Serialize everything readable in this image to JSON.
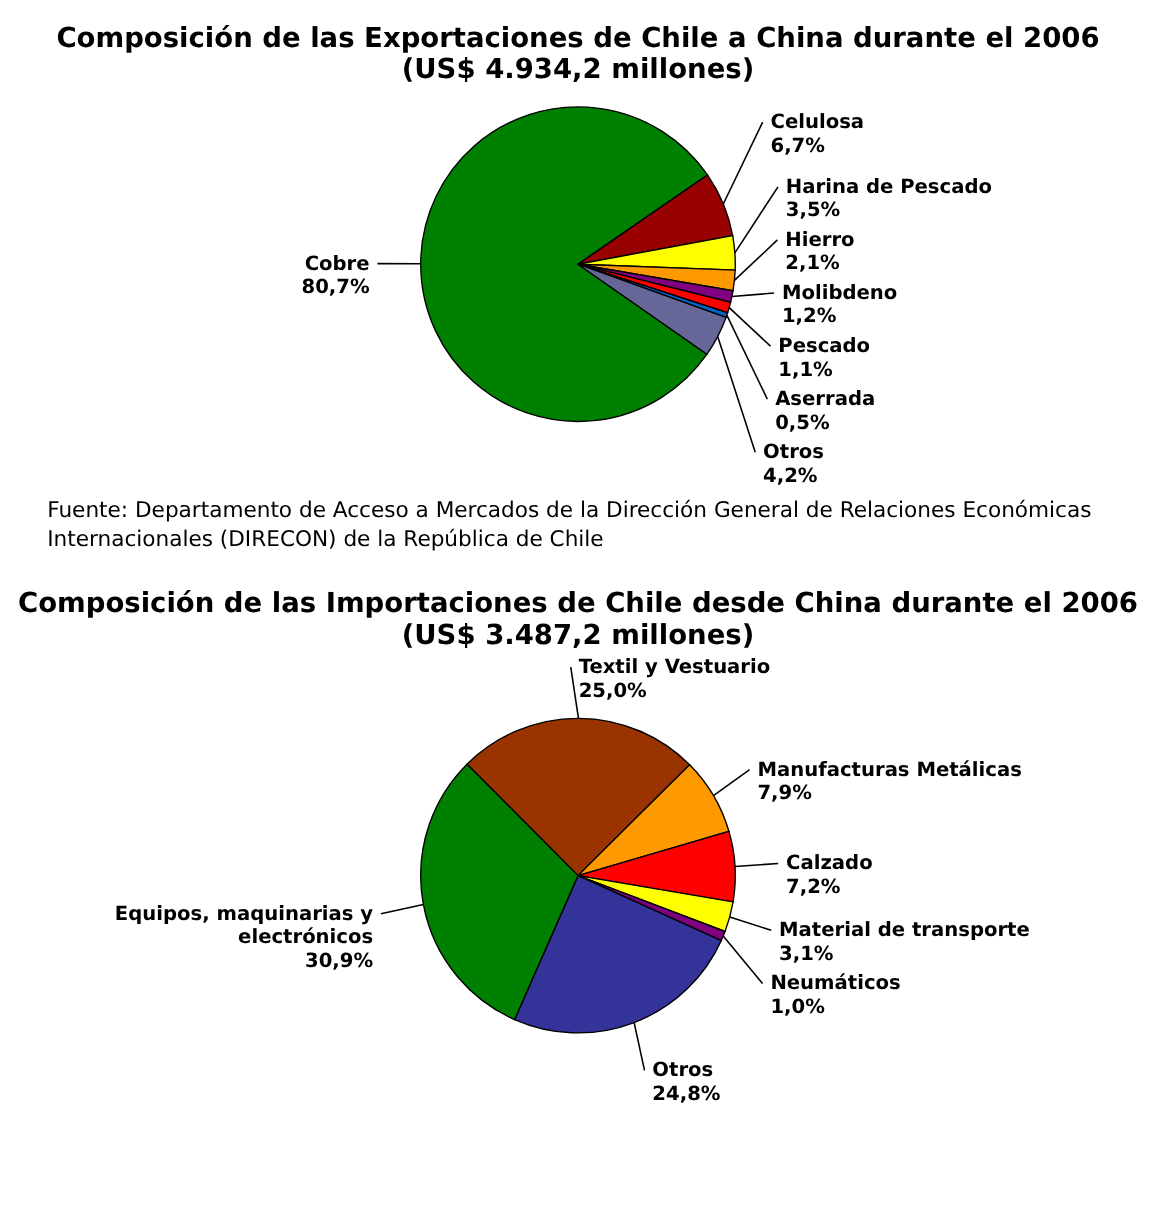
{
  "chart_data": [
    {
      "type": "pie",
      "title": "Composición de las Exportaciones de Chile a China durante el 2006\n(US$ 4.934,2 millones)",
      "categories": [
        "Cobre",
        "Celulosa",
        "Harina de Pescado",
        "Hierro",
        "Molibdeno",
        "Pescado",
        "Aserrada",
        "Otros"
      ],
      "values": [
        80.7,
        6.7,
        3.5,
        2.1,
        1.2,
        1.1,
        0.5,
        4.2
      ],
      "colors": [
        "#008000",
        "#990000",
        "#ffff00",
        "#ff9900",
        "#800080",
        "#ff0000",
        "#0066cc",
        "#666699"
      ],
      "value_labels": [
        "80,7%",
        "6,7%",
        "3,5%",
        "2,1%",
        "1,2%",
        "1,1%",
        "0,5%",
        "4,2%"
      ],
      "annotations": [
        "Fuente: Departamento de Acceso a Mercados de la Dirección General de Relaciones Económicas Internacionales (DIRECON) de la República de Chile"
      ]
    },
    {
      "type": "pie",
      "title": "Composición de las Importaciones de Chile desde China durante el 2006\n(US$ 3.487,2 millones)",
      "categories": [
        "Textil y Vestuario",
        "Manufacturas Metálicas",
        "Calzado",
        "Material de transporte",
        "Neumáticos",
        "Otros",
        "Equipos, maquinarias y\nelectrónicos"
      ],
      "values": [
        25.0,
        7.9,
        7.2,
        3.1,
        1.0,
        24.8,
        30.9
      ],
      "colors": [
        "#993300",
        "#ff9900",
        "#ff0000",
        "#ffff00",
        "#800080",
        "#333399",
        "#008000"
      ],
      "value_labels": [
        "25,0%",
        "7,9%",
        "7,2%",
        "3,1%",
        "1,0%",
        "24,8%",
        "30,9%"
      ]
    }
  ]
}
